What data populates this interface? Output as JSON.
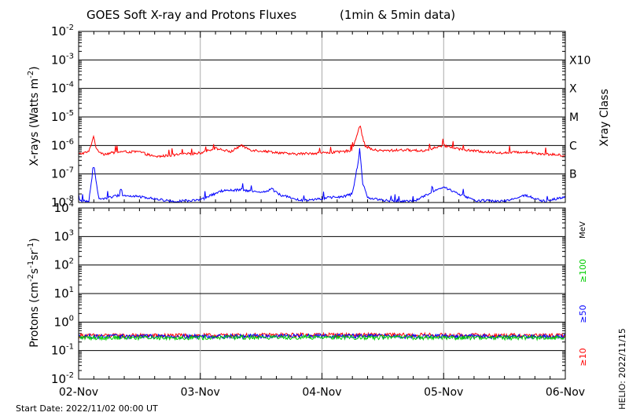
{
  "chart_data": [
    {
      "type": "line",
      "title": "GOES Soft X-ray and Protons Fluxes",
      "subtitle": "(1min & 5min data)",
      "ylabel": "X-rays (Watts m^-2)",
      "ylabel_main": "X-rays (Watts m",
      "ylabel_sup": "-2",
      "ylabel_close": ")",
      "y_scale": "log",
      "ylim": [
        1e-08,
        0.01
      ],
      "yticks": [
        {
          "base": "10",
          "exp": "-8",
          "value": 1e-08
        },
        {
          "base": "10",
          "exp": "-7",
          "value": 1e-07
        },
        {
          "base": "10",
          "exp": "-6",
          "value": 1e-06
        },
        {
          "base": "10",
          "exp": "-5",
          "value": 1e-05
        },
        {
          "base": "10",
          "exp": "-4",
          "value": 0.0001
        },
        {
          "base": "10",
          "exp": "-3",
          "value": 0.001
        },
        {
          "base": "10",
          "exp": "-2",
          "value": 0.01
        }
      ],
      "right_axis_label": "Xray Class",
      "right_classes": [
        {
          "label": "B",
          "value": 1e-07
        },
        {
          "label": "C",
          "value": 1e-06
        },
        {
          "label": "M",
          "value": 1e-05
        },
        {
          "label": "X",
          "value": 0.0001
        },
        {
          "label": "X10",
          "value": 0.001
        }
      ],
      "x_range_days": [
        "2022-11-02",
        "2022-11-06"
      ],
      "grid": true,
      "series": [
        {
          "color": "#ff0000",
          "x": [
            "2022-11-02 00:00",
            "2022-11-02 02:00",
            "2022-11-02 03:00",
            "2022-11-02 03:30",
            "2022-11-02 05:00",
            "2022-11-02 08:00",
            "2022-11-02 12:00",
            "2022-11-02 15:00",
            "2022-11-02 18:00",
            "2022-11-03 00:00",
            "2022-11-03 03:00",
            "2022-11-03 06:00",
            "2022-11-03 08:00",
            "2022-11-03 10:00",
            "2022-11-03 14:00",
            "2022-11-03 18:00",
            "2022-11-04 00:00",
            "2022-11-04 04:00",
            "2022-11-04 06:00",
            "2022-11-04 07:30",
            "2022-11-04 08:00",
            "2022-11-04 08:30",
            "2022-11-04 10:00",
            "2022-11-04 12:00",
            "2022-11-04 16:00",
            "2022-11-04 20:00",
            "2022-11-05 00:00",
            "2022-11-05 04:00",
            "2022-11-05 08:00",
            "2022-11-05 12:00",
            "2022-11-05 16:00",
            "2022-11-05 20:00",
            "2022-11-06 00:00"
          ],
          "y": [
            5e-07,
            6e-07,
            2.2e-06,
            7e-07,
            5e-07,
            6e-07,
            6e-07,
            4e-07,
            4.5e-07,
            5.5e-07,
            8e-07,
            6e-07,
            1e-06,
            7e-07,
            6e-07,
            5e-07,
            5.5e-07,
            6e-07,
            7e-07,
            5.5e-06,
            2e-06,
            1e-06,
            7e-07,
            6.5e-07,
            7e-07,
            6.5e-07,
            1e-06,
            7e-07,
            6e-07,
            5.5e-07,
            6e-07,
            5e-07,
            4.5e-07
          ]
        },
        {
          "color": "#0000ff",
          "x": [
            "2022-11-02 00:00",
            "2022-11-02 02:00",
            "2022-11-02 03:00",
            "2022-11-02 04:00",
            "2022-11-02 06:00",
            "2022-11-02 08:00",
            "2022-11-02 12:00",
            "2022-11-02 16:00",
            "2022-11-02 18:00",
            "2022-11-03 00:00",
            "2022-11-03 04:00",
            "2022-11-03 08:00",
            "2022-11-03 12:00",
            "2022-11-03 14:00",
            "2022-11-03 16:00",
            "2022-11-03 20:00",
            "2022-11-04 00:00",
            "2022-11-04 04:00",
            "2022-11-04 06:00",
            "2022-11-04 07:30",
            "2022-11-04 08:00",
            "2022-11-04 09:00",
            "2022-11-04 12:00",
            "2022-11-04 18:00",
            "2022-11-05 00:00",
            "2022-11-05 03:00",
            "2022-11-05 06:00",
            "2022-11-05 12:00",
            "2022-11-05 16:00",
            "2022-11-05 20:00",
            "2022-11-06 00:00"
          ],
          "y": [
            1.2e-08,
            1.1e-08,
            2e-07,
            1.3e-08,
            1.5e-08,
            1.8e-08,
            1.6e-08,
            1.3e-08,
            1.1e-08,
            1.2e-08,
            2.5e-08,
            2.8e-08,
            2.2e-08,
            3e-08,
            1.8e-08,
            1.2e-08,
            1.4e-08,
            1.6e-08,
            2e-08,
            6e-07,
            5e-08,
            1.5e-08,
            1.2e-08,
            1.1e-08,
            3.5e-08,
            2e-08,
            1.2e-08,
            1.1e-08,
            1.8e-08,
            1.1e-08,
            1.6e-08
          ]
        }
      ]
    },
    {
      "type": "line",
      "ylabel": "Protons (cm^-2 s^-1 sr^-1)",
      "ylabel_parts": [
        {
          "t": "Protons (cm",
          "sup": false
        },
        {
          "t": "-2",
          "sup": true
        },
        {
          "t": "s",
          "sup": false
        },
        {
          "t": "-1",
          "sup": true
        },
        {
          "t": "sr",
          "sup": false
        },
        {
          "t": "-1",
          "sup": true
        },
        {
          "t": ")",
          "sup": false
        }
      ],
      "y_scale": "log",
      "ylim": [
        0.01,
        10000
      ],
      "yticks": [
        {
          "base": "10",
          "exp": "-2",
          "value": 0.01
        },
        {
          "base": "10",
          "exp": "-1",
          "value": 0.1
        },
        {
          "base": "10",
          "exp": "0",
          "value": 1
        },
        {
          "base": "10",
          "exp": "1",
          "value": 10
        },
        {
          "base": "10",
          "exp": "2",
          "value": 100
        },
        {
          "base": "10",
          "exp": "3",
          "value": 1000
        },
        {
          "base": "10",
          "exp": "4",
          "value": 10000
        }
      ],
      "dashed_threshold": 10,
      "right_unit": "MeV",
      "energy_labels": [
        {
          "label": "≥100",
          "color": "#00cc00"
        },
        {
          "label": "≥50",
          "color": "#0000ff"
        },
        {
          "label": "≥10",
          "color": "#ff0000"
        }
      ],
      "x_range_days": [
        "2022-11-02",
        "2022-11-06"
      ],
      "series": [
        {
          "color": "#ff0000",
          "x": [
            "2022-11-02",
            "2022-11-03",
            "2022-11-04",
            "2022-11-05",
            "2022-11-06"
          ],
          "y": [
            0.33,
            0.33,
            0.35,
            0.34,
            0.33
          ]
        },
        {
          "color": "#0000ff",
          "x": [
            "2022-11-02",
            "2022-11-03",
            "2022-11-04",
            "2022-11-05",
            "2022-11-06"
          ],
          "y": [
            0.31,
            0.31,
            0.32,
            0.31,
            0.31
          ]
        },
        {
          "color": "#00cc00",
          "x": [
            "2022-11-02",
            "2022-11-03",
            "2022-11-04",
            "2022-11-05",
            "2022-11-06"
          ],
          "y": [
            0.28,
            0.28,
            0.29,
            0.28,
            0.28
          ]
        }
      ]
    }
  ],
  "x_tick_labels": [
    "02-Nov",
    "03-Nov",
    "04-Nov",
    "05-Nov",
    "06-Nov"
  ],
  "footer": {
    "start_date": "Start Date: 2022/11/02 00:00 UT",
    "credit": "HELIO: 2022/11/15"
  }
}
